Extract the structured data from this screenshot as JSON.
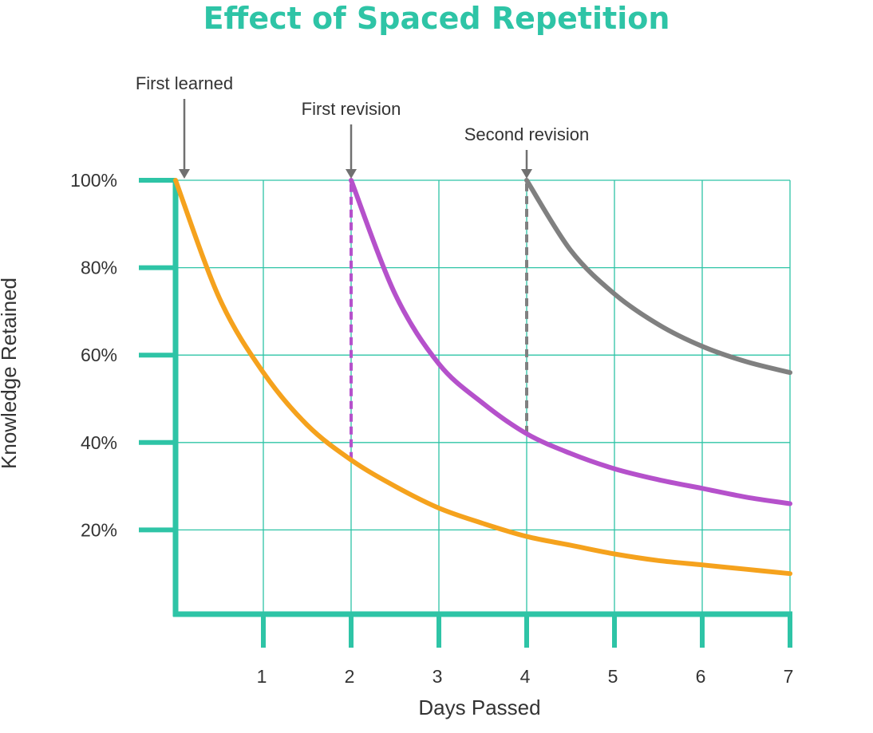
{
  "chart_data": {
    "type": "line",
    "title": "Effect of Spaced Repetition",
    "xlabel": "Days Passed",
    "ylabel": "Knowledge Retained",
    "xlim": [
      0,
      7
    ],
    "ylim": [
      0,
      100
    ],
    "x_ticks": [
      "1",
      "2",
      "3",
      "4",
      "5",
      "6",
      "7"
    ],
    "y_ticks": [
      "20%",
      "40%",
      "60%",
      "80%",
      "100%"
    ],
    "grid": true,
    "series": [
      {
        "x": [
          0,
          0.5,
          1,
          1.5,
          2,
          2.5,
          3,
          3.5,
          4,
          4.5,
          5,
          5.5,
          6,
          6.5,
          7
        ],
        "y": [
          100,
          73,
          56,
          44,
          36,
          30,
          25,
          21.5,
          18.5,
          16.5,
          14.5,
          13,
          12,
          11,
          10
        ],
        "color": "#f5a21d"
      },
      {
        "x": [
          2,
          2.5,
          3,
          3.5,
          4,
          4.5,
          5,
          5.5,
          6,
          6.5,
          7
        ],
        "y": [
          100,
          74,
          58,
          49,
          42,
          37.5,
          34,
          31.5,
          29.5,
          27.5,
          26
        ],
        "color": "#b551cb"
      },
      {
        "x": [
          4,
          4.5,
          5,
          5.5,
          6,
          6.5,
          7
        ],
        "y": [
          100,
          84,
          74,
          67,
          62,
          58.5,
          56
        ],
        "color": "#808080"
      }
    ],
    "annotations": [
      {
        "text": "First learned",
        "x": 0,
        "y": 100
      },
      {
        "text": "First revision",
        "x": 2,
        "y": 100
      },
      {
        "text": "Second revision",
        "x": 4,
        "y": 100
      }
    ],
    "revision_drops": [
      {
        "x": 2,
        "from": 36,
        "to": 100,
        "color": "#b551cb"
      },
      {
        "x": 4,
        "from": 42,
        "to": 100,
        "color": "#808080"
      }
    ],
    "colors": {
      "accent": "#2ec4a6",
      "grid": "#2ec4a6",
      "arrow": "#707070"
    }
  }
}
